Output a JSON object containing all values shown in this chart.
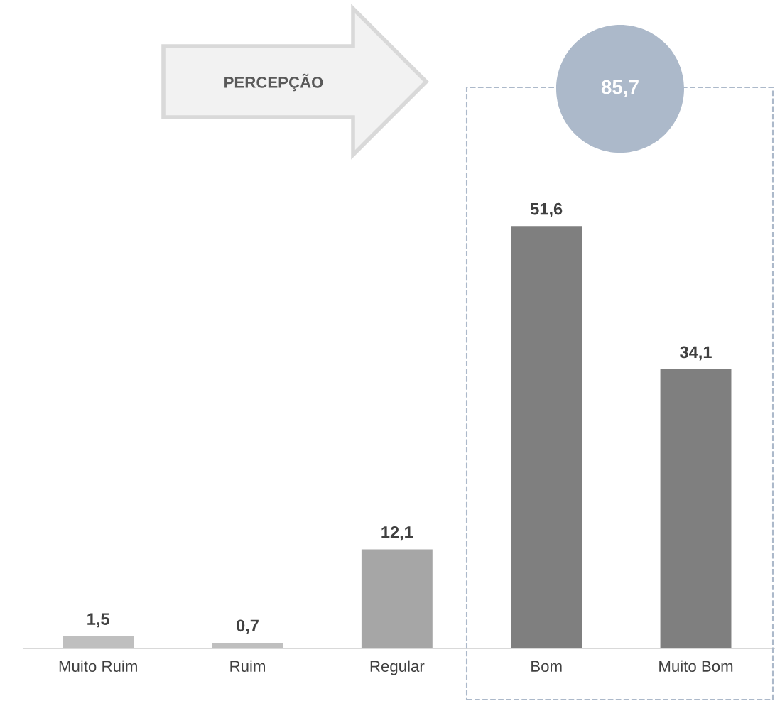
{
  "chart_data": {
    "type": "bar",
    "categories": [
      "Muito Ruim",
      "Ruim",
      "Regular",
      "Bom",
      "Muito Bom"
    ],
    "values": [
      1.5,
      0.7,
      12.1,
      51.6,
      34.1
    ],
    "colors": [
      "#bfbfbf",
      "#bfbfbf",
      "#a6a6a6",
      "#7f7f7f",
      "#7f7f7f"
    ],
    "value_labels": [
      "1,5",
      "0,7",
      "12,1",
      "51,6",
      "34,1"
    ],
    "annotations": [
      "PERCEPÇÃO",
      "85,7"
    ],
    "grid": false
  }
}
